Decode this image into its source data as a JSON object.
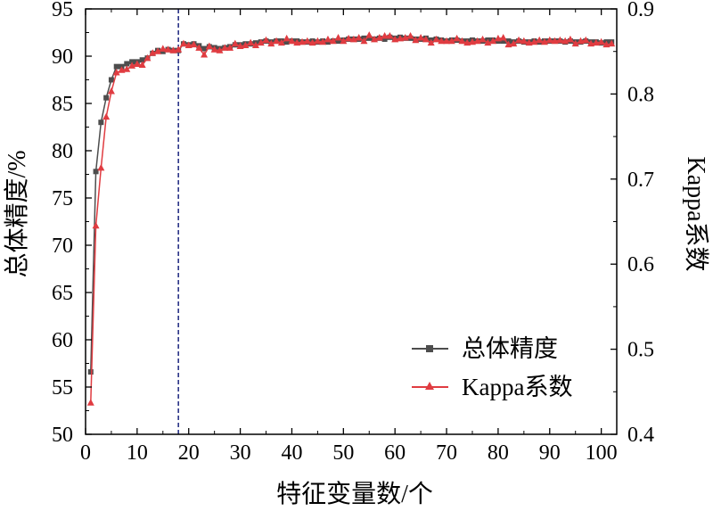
{
  "chart_data": {
    "type": "line",
    "xlabel": "特征变量数/个",
    "ylabel_left": "总体精度/%",
    "ylabel_right": "Kappa系数",
    "xlim": [
      0,
      103
    ],
    "ylim_left": [
      50,
      95
    ],
    "ylim_right": [
      0.4,
      0.9
    ],
    "xticks": [
      0,
      10,
      20,
      30,
      40,
      50,
      60,
      70,
      80,
      90,
      100
    ],
    "yticks_left": [
      50,
      55,
      60,
      65,
      70,
      75,
      80,
      85,
      90,
      95
    ],
    "yticks_right": [
      "0.4",
      "0.5",
      "0.6",
      "0.7",
      "0.8",
      "0.9"
    ],
    "vline_x": 18,
    "legend_position": "bottom-right",
    "series": [
      {
        "name": "总体精度",
        "axis": "left",
        "marker": "square",
        "color": "#4d4d4d",
        "values": [
          56.6,
          77.8,
          83.0,
          85.6,
          87.5,
          88.9,
          88.9,
          89.2,
          89.4,
          89.4,
          89.6,
          89.8,
          90.3,
          90.6,
          90.5,
          90.7,
          90.6,
          90.6,
          91.3,
          91.2,
          91.3,
          91.1,
          90.8,
          91.0,
          90.9,
          90.8,
          90.9,
          91.0,
          91.2,
          91.2,
          91.3,
          91.3,
          91.4,
          91.5,
          91.6,
          91.5,
          91.6,
          91.6,
          91.5,
          91.6,
          91.6,
          91.5,
          91.5,
          91.6,
          91.5,
          91.6,
          91.5,
          91.6,
          91.6,
          91.7,
          91.8,
          91.8,
          91.8,
          91.9,
          91.9,
          91.8,
          91.9,
          91.8,
          92.0,
          91.9,
          92.0,
          91.9,
          91.9,
          91.8,
          91.8,
          91.9,
          91.7,
          91.8,
          91.7,
          91.6,
          91.7,
          91.7,
          91.6,
          91.6,
          91.7,
          91.6,
          91.6,
          91.7,
          91.7,
          91.6,
          91.6,
          91.6,
          91.5,
          91.6,
          91.5,
          91.5,
          91.6,
          91.5,
          91.6,
          91.6,
          91.6,
          91.6,
          91.5,
          91.6,
          91.5,
          91.5,
          91.6,
          91.5,
          91.5,
          91.4,
          91.5,
          91.5
        ]
      },
      {
        "name": "Kappa系数",
        "axis": "right",
        "marker": "triangle",
        "color": "#e03c41",
        "values": [
          0.437,
          0.645,
          0.713,
          0.773,
          0.803,
          0.825,
          0.828,
          0.829,
          0.833,
          0.835,
          0.834,
          0.842,
          0.848,
          0.85,
          0.853,
          0.852,
          0.851,
          0.852,
          0.859,
          0.857,
          0.858,
          0.854,
          0.846,
          0.856,
          0.852,
          0.851,
          0.854,
          0.854,
          0.859,
          0.856,
          0.857,
          0.86,
          0.857,
          0.86,
          0.863,
          0.859,
          0.862,
          0.86,
          0.865,
          0.862,
          0.86,
          0.861,
          0.862,
          0.86,
          0.862,
          0.861,
          0.864,
          0.862,
          0.866,
          0.862,
          0.865,
          0.864,
          0.866,
          0.862,
          0.869,
          0.864,
          0.866,
          0.868,
          0.868,
          0.864,
          0.865,
          0.866,
          0.868,
          0.863,
          0.866,
          0.864,
          0.86,
          0.864,
          0.862,
          0.862,
          0.862,
          0.865,
          0.862,
          0.86,
          0.861,
          0.862,
          0.864,
          0.86,
          0.862,
          0.865,
          0.866,
          0.858,
          0.859,
          0.863,
          0.862,
          0.86,
          0.861,
          0.863,
          0.861,
          0.863,
          0.862,
          0.863,
          0.862,
          0.864,
          0.859,
          0.862,
          0.863,
          0.859,
          0.86,
          0.861,
          0.858,
          0.859
        ]
      }
    ]
  }
}
